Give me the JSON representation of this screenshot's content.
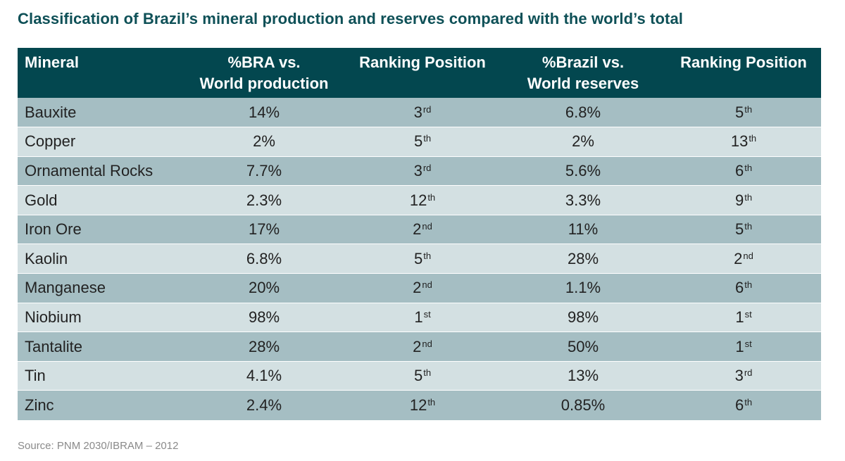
{
  "title": "Classification of Brazil’s mineral production and reserves compared with the world’s total",
  "table": {
    "headers": {
      "mineral": "Mineral",
      "production_pct": [
        "%BRA vs.",
        "World production"
      ],
      "production_rank": "Ranking Position",
      "reserves_pct": [
        "%Brazil vs.",
        "World reserves"
      ],
      "reserves_rank": "Ranking Position"
    },
    "rows": [
      {
        "mineral": "Bauxite",
        "production_pct": "14%",
        "production_rank": {
          "num": "3",
          "suffix": "rd"
        },
        "reserves_pct": "6.8%",
        "reserves_rank": {
          "num": "5",
          "suffix": "th"
        }
      },
      {
        "mineral": "Copper",
        "production_pct": "2%",
        "production_rank": {
          "num": "5",
          "suffix": "th"
        },
        "reserves_pct": "2%",
        "reserves_rank": {
          "num": "13",
          "suffix": "th"
        }
      },
      {
        "mineral": "Ornamental Rocks",
        "production_pct": "7.7%",
        "production_rank": {
          "num": "3",
          "suffix": "rd"
        },
        "reserves_pct": "5.6%",
        "reserves_rank": {
          "num": "6",
          "suffix": "th"
        }
      },
      {
        "mineral": "Gold",
        "production_pct": "2.3%",
        "production_rank": {
          "num": "12",
          "suffix": "th"
        },
        "reserves_pct": "3.3%",
        "reserves_rank": {
          "num": "9",
          "suffix": "th"
        }
      },
      {
        "mineral": "Iron Ore",
        "production_pct": "17%",
        "production_rank": {
          "num": "2",
          "suffix": "nd"
        },
        "reserves_pct": "11%",
        "reserves_rank": {
          "num": "5",
          "suffix": "th"
        }
      },
      {
        "mineral": "Kaolin",
        "production_pct": "6.8%",
        "production_rank": {
          "num": "5",
          "suffix": "th"
        },
        "reserves_pct": "28%",
        "reserves_rank": {
          "num": "2",
          "suffix": "nd"
        }
      },
      {
        "mineral": "Manganese",
        "production_pct": "20%",
        "production_rank": {
          "num": "2",
          "suffix": "nd"
        },
        "reserves_pct": "1.1%",
        "reserves_rank": {
          "num": "6",
          "suffix": "th"
        }
      },
      {
        "mineral": "Niobium",
        "production_pct": "98%",
        "production_rank": {
          "num": "1",
          "suffix": "st"
        },
        "reserves_pct": "98%",
        "reserves_rank": {
          "num": "1",
          "suffix": "st"
        }
      },
      {
        "mineral": "Tantalite",
        "production_pct": "28%",
        "production_rank": {
          "num": "2",
          "suffix": "nd"
        },
        "reserves_pct": "50%",
        "reserves_rank": {
          "num": "1",
          "suffix": "st"
        }
      },
      {
        "mineral": "Tin",
        "production_pct": "4.1%",
        "production_rank": {
          "num": "5",
          "suffix": "th"
        },
        "reserves_pct": "13%",
        "reserves_rank": {
          "num": "3",
          "suffix": "rd"
        }
      },
      {
        "mineral": "Zinc",
        "production_pct": "2.4%",
        "production_rank": {
          "num": "12",
          "suffix": "th"
        },
        "reserves_pct": "0.85%",
        "reserves_rank": {
          "num": "6",
          "suffix": "th"
        }
      }
    ]
  },
  "source": "Source: PNM 2030/IBRAM – 2012",
  "colors": {
    "title": "#0e5057",
    "header_bg": "#03474f",
    "row_odd": "#a5bec3",
    "row_even": "#d3e0e2"
  }
}
